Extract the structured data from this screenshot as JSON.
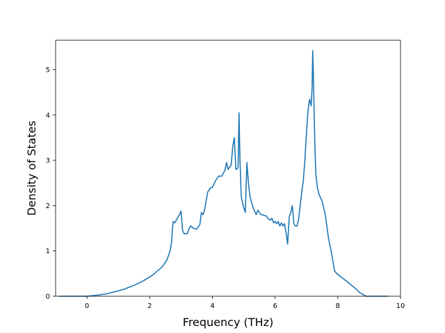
{
  "chart_data": {
    "type": "line",
    "xlabel": "Frequency (THz)",
    "ylabel": "Density of States",
    "xlim": [
      -1.0,
      10.0
    ],
    "ylim": [
      0,
      5.65
    ],
    "xticks": [
      0,
      2,
      4,
      6,
      8,
      10
    ],
    "yticks": [
      0,
      1,
      2,
      3,
      4,
      5
    ],
    "grid": false,
    "line_color": "#1f77b4",
    "series": [
      {
        "x": [
          -0.9,
          0.0,
          0.3,
          0.6,
          0.9,
          1.2,
          1.5,
          1.8,
          2.1,
          2.4,
          2.55,
          2.65,
          2.7,
          2.72,
          2.75,
          2.8,
          2.95,
          3.0,
          3.05,
          3.1,
          3.2,
          3.25,
          3.3,
          3.4,
          3.5,
          3.6,
          3.65,
          3.7,
          3.75,
          3.85,
          3.95,
          4.0,
          4.1,
          4.15,
          4.2,
          4.3,
          4.4,
          4.45,
          4.5,
          4.55,
          4.6,
          4.65,
          4.7,
          4.72,
          4.75,
          4.78,
          4.82,
          4.85,
          4.88,
          4.92,
          5.0,
          5.05,
          5.1,
          5.15,
          5.2,
          5.3,
          5.4,
          5.45,
          5.5,
          5.55,
          5.6,
          5.65,
          5.7,
          5.8,
          5.85,
          5.9,
          5.95,
          6.0,
          6.05,
          6.1,
          6.15,
          6.2,
          6.25,
          6.3,
          6.35,
          6.4,
          6.45,
          6.5,
          6.55,
          6.6,
          6.65,
          6.7,
          6.75,
          6.8,
          6.85,
          6.9,
          6.95,
          7.0,
          7.05,
          7.1,
          7.15,
          7.18,
          7.2,
          7.22,
          7.25,
          7.27,
          7.3,
          7.35,
          7.4,
          7.5,
          7.6,
          7.7,
          7.8,
          7.9,
          8.0,
          8.3,
          8.6,
          8.7,
          8.9,
          9.6
        ],
        "y": [
          0.0,
          0.0,
          0.02,
          0.05,
          0.1,
          0.16,
          0.24,
          0.34,
          0.47,
          0.65,
          0.8,
          1.0,
          1.2,
          1.45,
          1.65,
          1.62,
          1.8,
          1.88,
          1.45,
          1.38,
          1.38,
          1.48,
          1.55,
          1.5,
          1.48,
          1.58,
          1.85,
          1.8,
          1.9,
          2.3,
          2.4,
          2.4,
          2.55,
          2.6,
          2.65,
          2.65,
          2.78,
          2.95,
          2.8,
          2.85,
          2.9,
          3.3,
          3.5,
          3.2,
          2.8,
          2.8,
          2.85,
          4.05,
          3.0,
          2.2,
          1.95,
          1.85,
          2.95,
          2.5,
          2.2,
          1.95,
          1.8,
          1.9,
          1.85,
          1.8,
          1.8,
          1.78,
          1.78,
          1.7,
          1.68,
          1.72,
          1.62,
          1.65,
          1.6,
          1.65,
          1.55,
          1.62,
          1.55,
          1.6,
          1.4,
          1.15,
          1.75,
          1.85,
          2.0,
          1.6,
          1.55,
          1.55,
          1.7,
          2.0,
          2.3,
          2.55,
          3.0,
          3.6,
          4.1,
          4.35,
          4.2,
          4.6,
          5.42,
          4.9,
          3.9,
          3.3,
          2.7,
          2.4,
          2.25,
          2.1,
          1.8,
          1.3,
          0.95,
          0.55,
          0.48,
          0.32,
          0.15,
          0.08,
          0.0,
          0.0
        ]
      }
    ]
  }
}
